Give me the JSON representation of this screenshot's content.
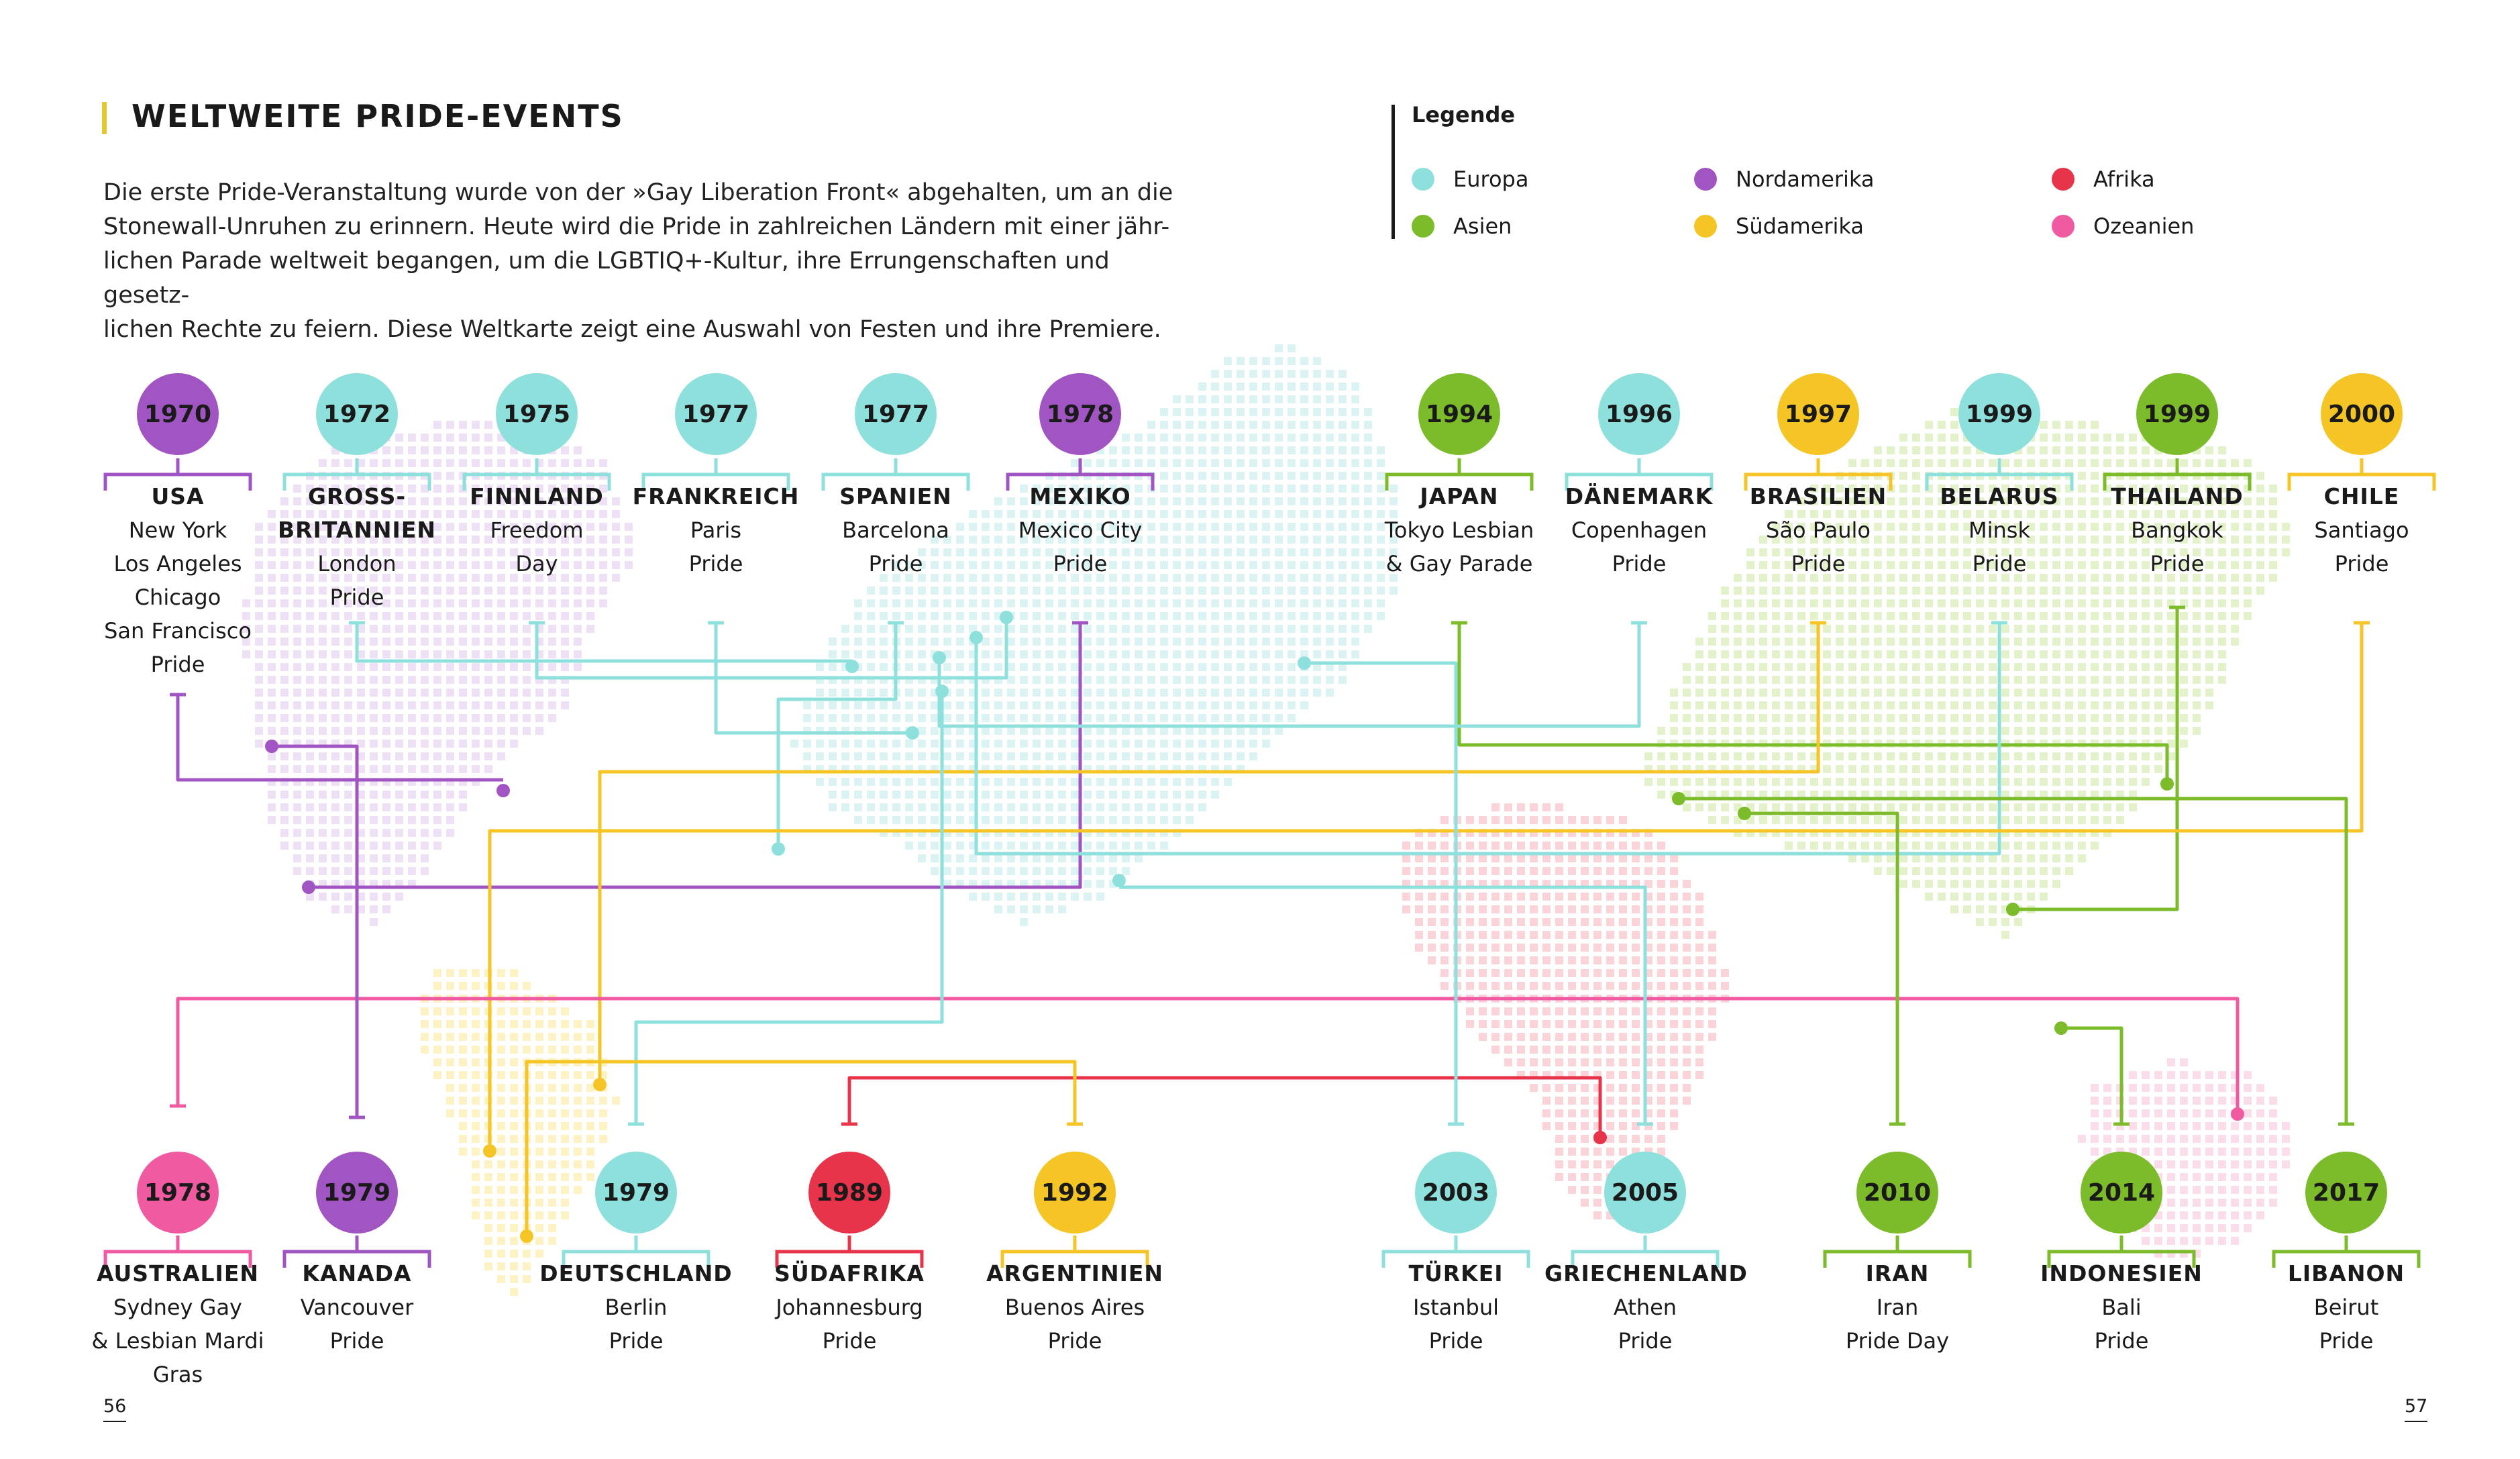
{
  "header": {
    "title": "WELTWEITE PRIDE-EVENTS",
    "intro_lines": [
      "Die erste Pride-Veranstaltung wurde von der »Gay Liberation Front« abgehalten, um an die",
      "Stonewall-Unruhen zu erinnern. Heute wird die Pride in zahlreichen Ländern mit einer jähr-",
      "lichen Parade weltweit begangen, um die LGBTIQ+-Kultur, ihre Errungenschaften und gesetz-",
      "lichen Rechte zu feiern. Diese Weltkarte zeigt eine Auswahl von Festen und ihre Premiere."
    ]
  },
  "legend": {
    "title": "Legende",
    "items": [
      {
        "key": "europa",
        "label": "Europa",
        "color": "#8ee0dc"
      },
      {
        "key": "asien",
        "label": "Asien",
        "color": "#7cbb2a"
      },
      {
        "key": "nordamerika",
        "label": "Nordamerika",
        "color": "#a155c3"
      },
      {
        "key": "suedamerika",
        "label": "Südamerika",
        "color": "#f4c525"
      },
      {
        "key": "afrika",
        "label": "Afrika",
        "color": "#e8344a"
      },
      {
        "key": "ozeanien",
        "label": "Ozeanien",
        "color": "#ef5aa1"
      }
    ]
  },
  "events_top": [
    {
      "year": "1970",
      "country": [
        "USA"
      ],
      "event": [
        "New York",
        "Los Angeles",
        "Chicago",
        "San Francisco",
        "Pride"
      ],
      "region": "nordamerika"
    },
    {
      "year": "1972",
      "country": [
        "GROSS-",
        "BRITANNIEN"
      ],
      "event": [
        "London",
        "Pride"
      ],
      "region": "europa"
    },
    {
      "year": "1975",
      "country": [
        "FINNLAND"
      ],
      "event": [
        "Freedom",
        "Day"
      ],
      "region": "europa"
    },
    {
      "year": "1977",
      "country": [
        "FRANKREICH"
      ],
      "event": [
        "Paris",
        "Pride"
      ],
      "region": "europa"
    },
    {
      "year": "1977",
      "country": [
        "SPANIEN"
      ],
      "event": [
        "Barcelona",
        "Pride"
      ],
      "region": "europa"
    },
    {
      "year": "1978",
      "country": [
        "MEXIKO"
      ],
      "event": [
        "Mexico City",
        "Pride"
      ],
      "region": "nordamerika"
    },
    {
      "year": "1994",
      "country": [
        "JAPAN"
      ],
      "event": [
        "Tokyo Lesbian",
        "& Gay Parade"
      ],
      "region": "asien"
    },
    {
      "year": "1996",
      "country": [
        "DÄNEMARK"
      ],
      "event": [
        "Copenhagen",
        "Pride"
      ],
      "region": "europa"
    },
    {
      "year": "1997",
      "country": [
        "BRASILIEN"
      ],
      "event": [
        "São Paulo",
        "Pride"
      ],
      "region": "suedamerika"
    },
    {
      "year": "1999",
      "country": [
        "BELARUS"
      ],
      "event": [
        "Minsk",
        "Pride"
      ],
      "region": "europa"
    },
    {
      "year": "1999",
      "country": [
        "THAILAND"
      ],
      "event": [
        "Bangkok",
        "Pride"
      ],
      "region": "asien"
    },
    {
      "year": "2000",
      "country": [
        "CHILE"
      ],
      "event": [
        "Santiago",
        "Pride"
      ],
      "region": "suedamerika"
    }
  ],
  "events_bottom": [
    {
      "year": "1978",
      "country": [
        "AUSTRALIEN"
      ],
      "event": [
        "Sydney Gay",
        "& Lesbian Mardi",
        "Gras"
      ],
      "region": "ozeanien"
    },
    {
      "year": "1979",
      "country": [
        "KANADA"
      ],
      "event": [
        "Vancouver",
        "Pride"
      ],
      "region": "nordamerika"
    },
    {
      "year": "1979",
      "country": [
        "DEUTSCHLAND"
      ],
      "event": [
        "Berlin",
        "Pride"
      ],
      "region": "europa"
    },
    {
      "year": "1989",
      "country": [
        "SÜDAFRIKA"
      ],
      "event": [
        "Johannesburg",
        "Pride"
      ],
      "region": "afrika"
    },
    {
      "year": "1992",
      "country": [
        "ARGENTINIEN"
      ],
      "event": [
        "Buenos Aires",
        "Pride"
      ],
      "region": "suedamerika"
    },
    {
      "year": "2003",
      "country": [
        "TÜRKEI"
      ],
      "event": [
        "Istanbul",
        "Pride"
      ],
      "region": "europa"
    },
    {
      "year": "2005",
      "country": [
        "GRIECHENLAND"
      ],
      "event": [
        "Athen",
        "Pride"
      ],
      "region": "europa"
    },
    {
      "year": "2010",
      "country": [
        "IRAN"
      ],
      "event": [
        "Iran",
        "Pride Day"
      ],
      "region": "asien"
    },
    {
      "year": "2014",
      "country": [
        "INDONESIEN"
      ],
      "event": [
        "Bali",
        "Pride"
      ],
      "region": "asien"
    },
    {
      "year": "2017",
      "country": [
        "LIBANON"
      ],
      "event": [
        "Beirut",
        "Pride"
      ],
      "region": "asien"
    }
  ],
  "page_numbers": {
    "left": "56",
    "right": "57"
  }
}
